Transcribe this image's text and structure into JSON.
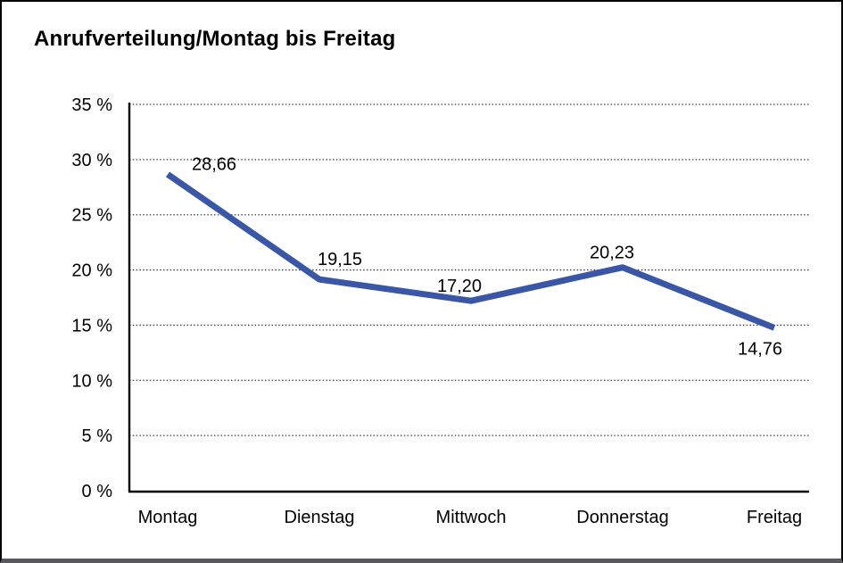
{
  "window": {
    "title": "Anrufverteilung/Montag bis Freitag"
  },
  "chart_data": {
    "type": "line",
    "title": "Anrufverteilung/Montag bis Freitag",
    "categories": [
      "Montag",
      "Dienstag",
      "Mittwoch",
      "Donnerstag",
      "Freitag"
    ],
    "series": [
      {
        "name": "Anrufverteilung",
        "values": [
          28.66,
          19.15,
          17.2,
          20.23,
          14.76
        ]
      }
    ],
    "point_labels": [
      "28,66",
      "19,15",
      "17,20",
      "20,23",
      "14,76"
    ],
    "xlabel": "",
    "ylabel": "",
    "ylim": [
      0,
      35
    ],
    "y_ticks": [
      0,
      5,
      10,
      15,
      20,
      25,
      30,
      35
    ],
    "y_tick_labels": [
      "0 %",
      "5 %",
      "10 %",
      "15 %",
      "20 %",
      "25 %",
      "30 %",
      "35 %"
    ],
    "grid": "horizontal-dotted",
    "legend": "none",
    "line_color": "#3a56a6"
  },
  "colors": {
    "line": "#3a56a6",
    "grid": "#3c3c3c",
    "axis": "#000000",
    "text": "#000000",
    "title": "#000000",
    "frame_border": "#000000",
    "frame_bottom": "#59595b",
    "background": "#ffffff"
  }
}
